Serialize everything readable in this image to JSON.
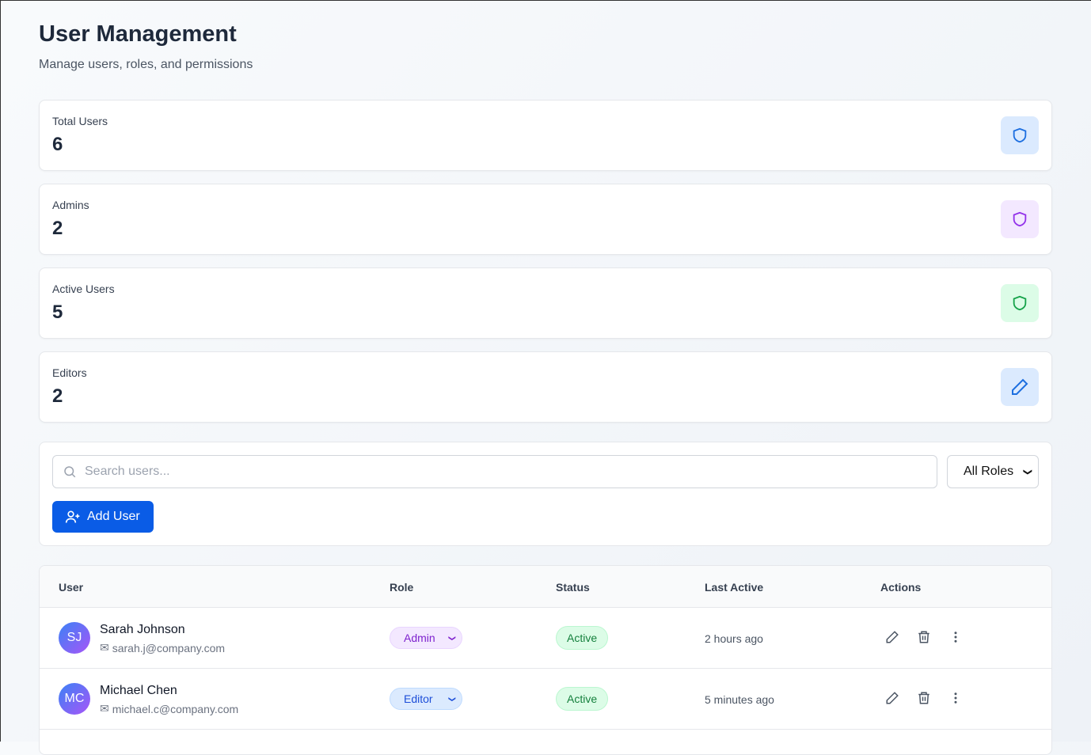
{
  "header": {
    "title": "User Management",
    "subtitle": "Manage users, roles, and permissions"
  },
  "stats": [
    {
      "label": "Total Users",
      "value": "6",
      "icon": "shield-icon",
      "color": "#1d6fe0",
      "bg": "#dbeafe"
    },
    {
      "label": "Admins",
      "value": "2",
      "icon": "shield-icon",
      "color": "#9333ea",
      "bg": "#f3e8ff"
    },
    {
      "label": "Active Users",
      "value": "5",
      "icon": "shield-icon",
      "color": "#16a34a",
      "bg": "#dcfce7"
    },
    {
      "label": "Editors",
      "value": "2",
      "icon": "pencil-icon",
      "color": "#1d6fe0",
      "bg": "#dbeafe"
    }
  ],
  "toolbar": {
    "search_placeholder": "Search users...",
    "search_value": "",
    "role_filter": "All Roles",
    "add_label": "Add User"
  },
  "table": {
    "columns": [
      "User",
      "Role",
      "Status",
      "Last Active",
      "Actions"
    ],
    "rows": [
      {
        "initials": "SJ",
        "name": "Sarah Johnson",
        "email": "sarah.j@company.com",
        "role": "Admin",
        "status": "Active",
        "last_active": "2 hours ago"
      },
      {
        "initials": "MC",
        "name": "Michael Chen",
        "email": "michael.c@company.com",
        "role": "Editor",
        "status": "Active",
        "last_active": "5 minutes ago"
      }
    ]
  }
}
